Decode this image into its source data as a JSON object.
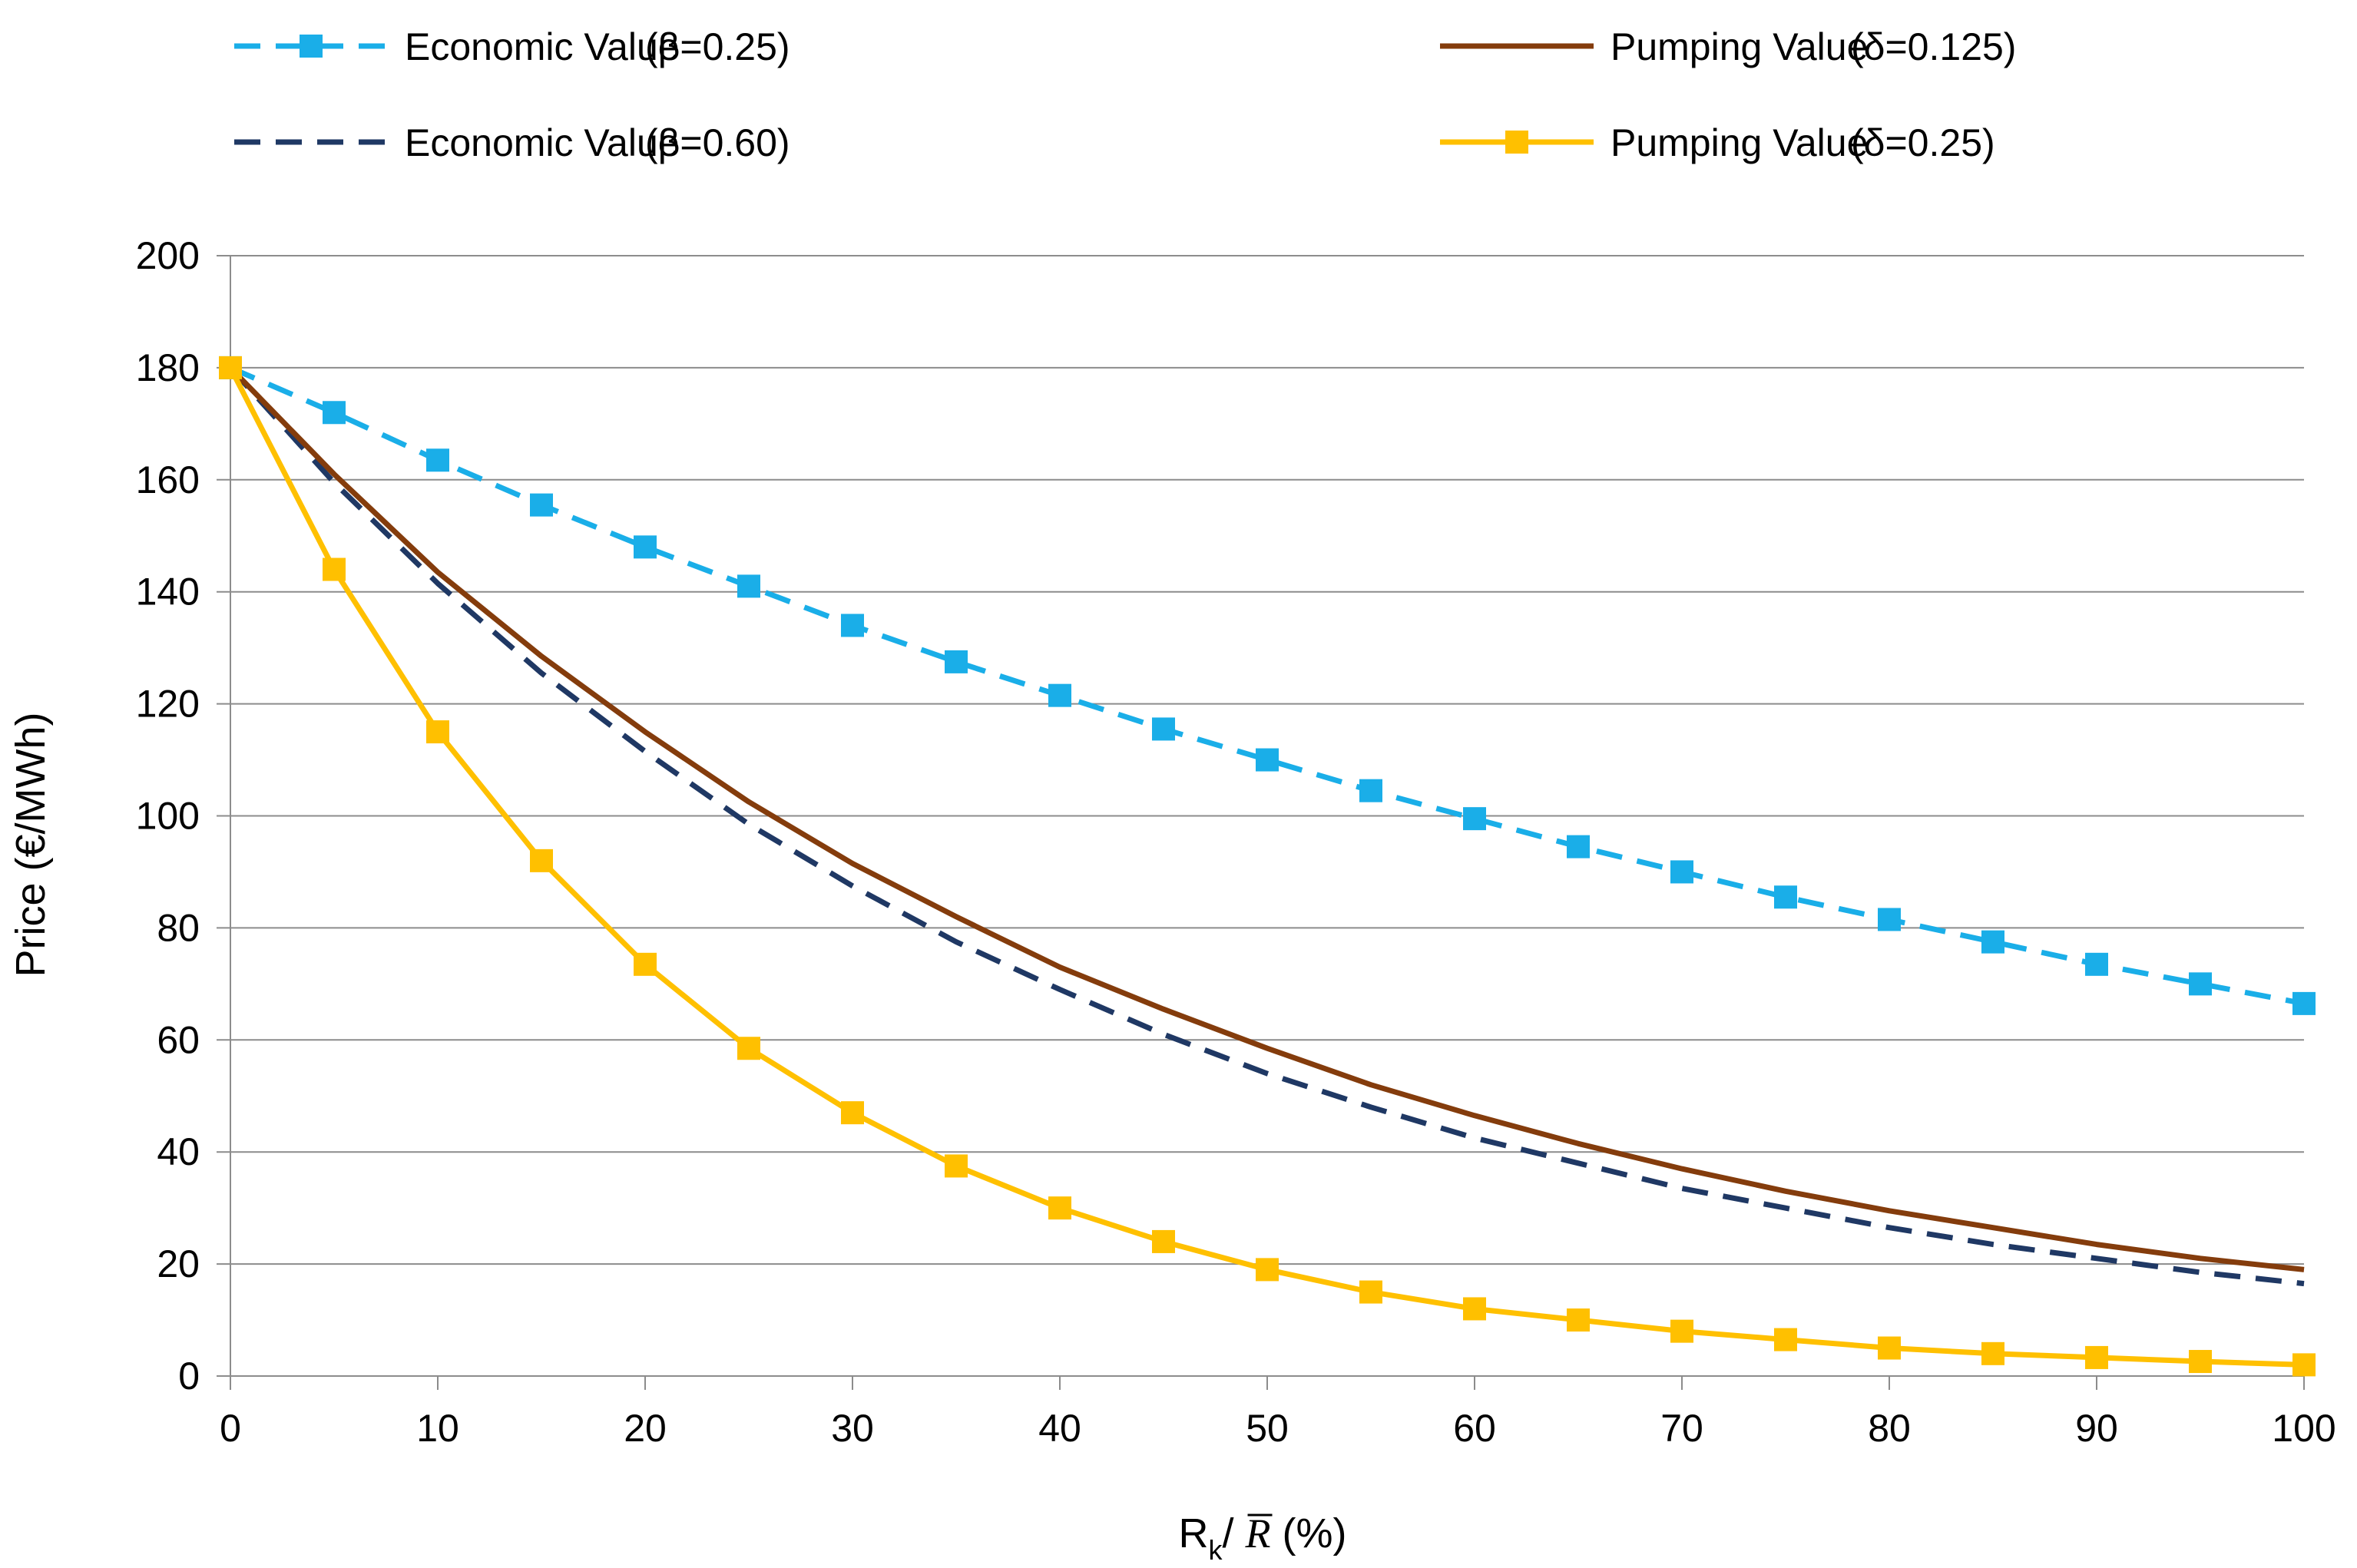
{
  "chart_data": {
    "type": "line",
    "title": "",
    "xlabel": "Rk/R̄ (%)",
    "xlabel_parts": {
      "main": "R",
      "sub": "k",
      "slash": "/ ",
      "rbar": "R",
      "unit": " (%)"
    },
    "ylabel": "Price (€/MWh)",
    "xlim": [
      0,
      100
    ],
    "ylim": [
      0,
      200
    ],
    "x_ticks": [
      0,
      10,
      20,
      30,
      40,
      50,
      60,
      70,
      80,
      90,
      100
    ],
    "y_ticks": [
      0,
      20,
      40,
      60,
      80,
      100,
      120,
      140,
      160,
      180,
      200
    ],
    "grid": "horizontal",
    "legend_position": "top",
    "x": [
      0,
      5,
      10,
      15,
      20,
      25,
      30,
      35,
      40,
      45,
      50,
      55,
      60,
      65,
      70,
      75,
      80,
      85,
      90,
      95,
      100
    ],
    "series": [
      {
        "id": "econ025",
        "name": "Economic Value",
        "param": "(β=0.25)",
        "color": "#1AAEE8",
        "style": "dashed",
        "marker": "square",
        "values": [
          180,
          172,
          163.5,
          155.5,
          148,
          141,
          134,
          127.5,
          121.5,
          115.5,
          110,
          104.5,
          99.5,
          94.5,
          90,
          85.5,
          81.5,
          77.5,
          73.5,
          70,
          66.5
        ]
      },
      {
        "id": "econ060",
        "name": "Economic Value",
        "param": "(β=0.60)",
        "color": "#1F3864",
        "style": "dashed",
        "marker": "none",
        "values": [
          180,
          159.5,
          141.5,
          125.5,
          111.5,
          98.5,
          87.5,
          77.5,
          69,
          61,
          54,
          48,
          42.5,
          38,
          33.5,
          30,
          26.5,
          23.5,
          21,
          18.5,
          16.5
        ]
      },
      {
        "id": "pump0125",
        "name": "Pumping Value",
        "param": "(δ=0.125)",
        "color": "#843C0C",
        "style": "solid",
        "marker": "none",
        "values": [
          180,
          161,
          143.5,
          128.5,
          115,
          102.5,
          91.5,
          82,
          73,
          65.5,
          58.5,
          52,
          46.5,
          41.5,
          37,
          33,
          29.5,
          26.5,
          23.5,
          21,
          19
        ]
      },
      {
        "id": "pump025",
        "name": "Pumping Value",
        "param": "(δ=0.25)",
        "color": "#FFC000",
        "style": "solid",
        "marker": "square",
        "values": [
          180,
          144,
          115,
          92,
          73.5,
          58.5,
          47,
          37.5,
          30,
          24,
          19,
          15,
          12,
          10,
          8,
          6.5,
          5,
          4,
          3.3,
          2.6,
          2
        ]
      }
    ]
  }
}
